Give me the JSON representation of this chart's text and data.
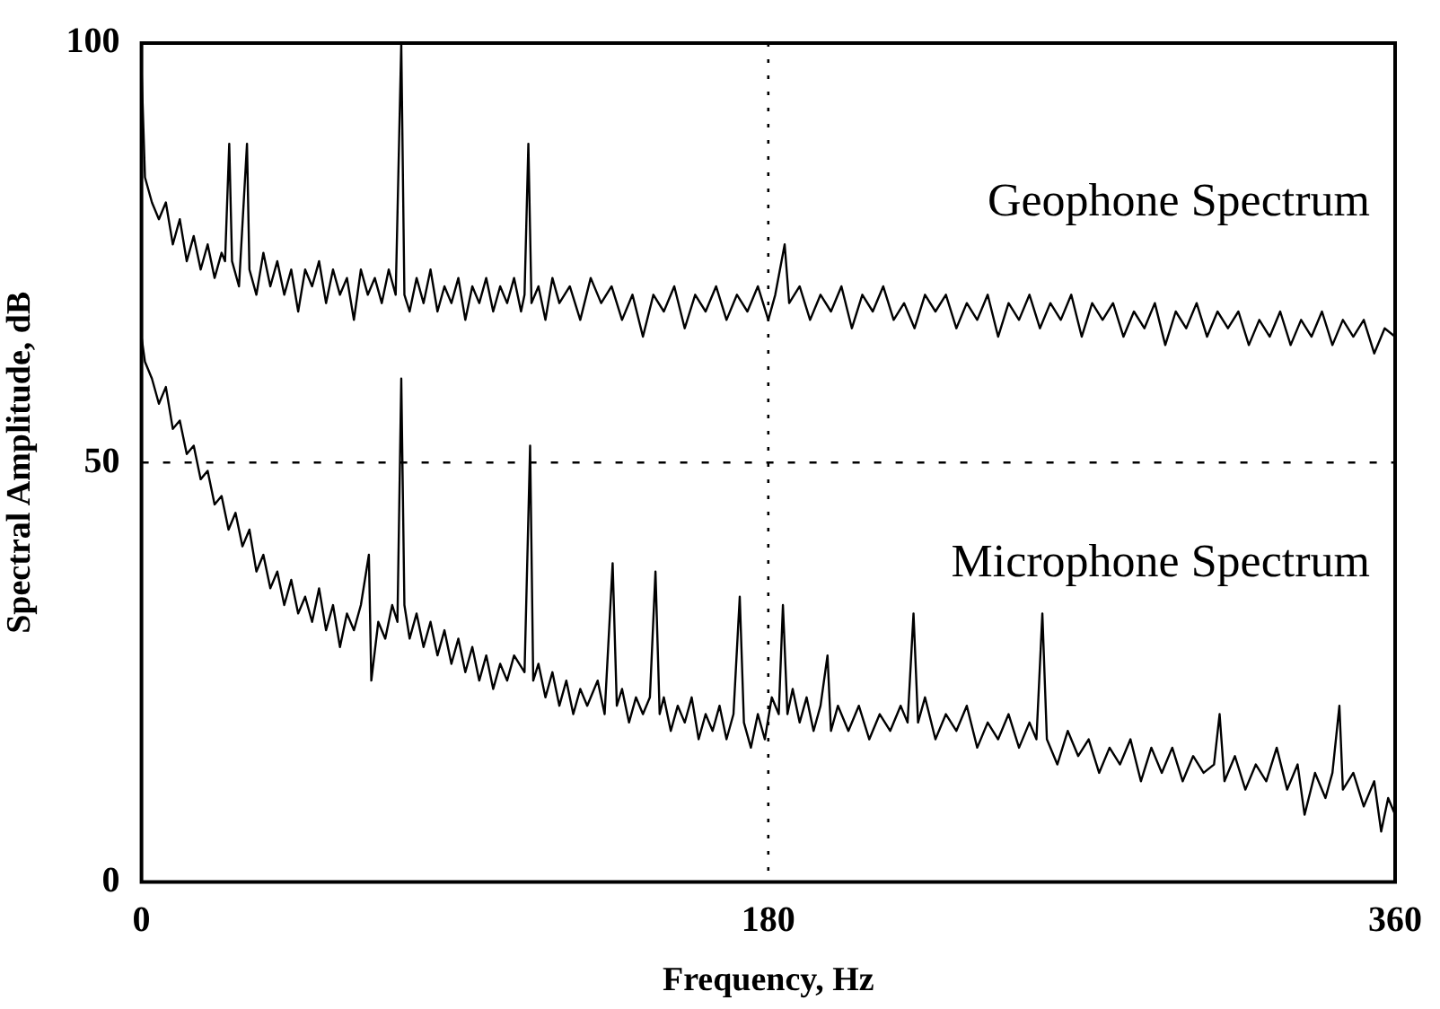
{
  "chart_data": {
    "type": "line",
    "xlabel": "Frequency, Hz",
    "ylabel": "Spectral Amplitude, dB",
    "xlim": [
      0,
      360
    ],
    "xticks": [
      0,
      180,
      360
    ],
    "ylim": [
      0,
      100
    ],
    "yticks": [
      0,
      50,
      100
    ],
    "grid": true,
    "legend": false,
    "marker": "none",
    "line_style": "solid",
    "series": [
      {
        "name": "Geophone Spectrum",
        "color": "#000000",
        "x": [
          0,
          1,
          3,
          5,
          7,
          9,
          11,
          13,
          15,
          17,
          19,
          21,
          23,
          24,
          25.2,
          26,
          28,
          30.3,
          31,
          33,
          35,
          37,
          39,
          41,
          43,
          45,
          47,
          49,
          51,
          53,
          55,
          57,
          59,
          61,
          63,
          65,
          67,
          69,
          71,
          73,
          74.6,
          75.5,
          77,
          79,
          81,
          83,
          85,
          87,
          89,
          91,
          93,
          95,
          97,
          99,
          101,
          103,
          105,
          107,
          109,
          110,
          111.1,
          112,
          114,
          116,
          118,
          120,
          123,
          126,
          129,
          132,
          135,
          138,
          141,
          144,
          147,
          150,
          153,
          156,
          159,
          162,
          165,
          168,
          171,
          174,
          177,
          180,
          182,
          184.7,
          186,
          189,
          192,
          195,
          198,
          201,
          204,
          207,
          210,
          213,
          216,
          219,
          222,
          225,
          228,
          231,
          234,
          237,
          240,
          243,
          246,
          249,
          252,
          255,
          258,
          261,
          264,
          267,
          270,
          273,
          276,
          279,
          282,
          285,
          288,
          291,
          294,
          297,
          300,
          303,
          306,
          309,
          312,
          315,
          318,
          321,
          324,
          327,
          330,
          333,
          336,
          339,
          342,
          345,
          348,
          351,
          354,
          357,
          360
        ],
        "values": [
          97,
          84,
          81,
          79,
          81,
          76,
          79,
          74,
          77,
          73,
          76,
          72,
          75,
          74,
          88,
          74,
          71,
          88,
          73,
          70,
          75,
          71,
          74,
          70,
          73,
          68,
          73,
          71,
          74,
          69,
          73,
          70,
          72,
          67,
          73,
          70,
          72,
          69,
          73,
          70,
          100,
          70,
          68,
          72,
          69,
          73,
          68,
          71,
          69,
          72,
          67,
          71,
          69,
          72,
          68,
          71,
          69,
          72,
          68,
          70,
          88,
          69,
          71,
          67,
          72,
          69,
          71,
          67,
          72,
          69,
          71,
          67,
          70,
          65,
          70,
          68,
          71,
          66,
          70,
          68,
          71,
          67,
          70,
          68,
          71,
          67,
          70,
          76,
          69,
          71,
          67,
          70,
          68,
          71,
          66,
          70,
          68,
          71,
          67,
          69,
          66,
          70,
          68,
          70,
          66,
          69,
          67,
          70,
          65,
          69,
          67,
          70,
          66,
          69,
          67,
          70,
          65,
          69,
          67,
          69,
          65,
          68,
          66,
          69,
          64,
          68,
          66,
          69,
          65,
          68,
          66,
          68,
          64,
          67,
          65,
          68,
          64,
          67,
          65,
          68,
          64,
          67,
          65,
          67,
          63,
          66,
          65
        ]
      },
      {
        "name": "Microphone Spectrum",
        "color": "#000000",
        "x": [
          0,
          1,
          3,
          5,
          7,
          9,
          11,
          13,
          15,
          17,
          19,
          21,
          23,
          25,
          27,
          29,
          31,
          33,
          35,
          37,
          39,
          41,
          43,
          45,
          47,
          49,
          51,
          53,
          55,
          57,
          59,
          61,
          63,
          65.3,
          66,
          68,
          70,
          72,
          73.5,
          74.6,
          75.5,
          77,
          79,
          81,
          83,
          85,
          87,
          89,
          91,
          93,
          95,
          97,
          99,
          101,
          103,
          105,
          107,
          110,
          111.6,
          112.5,
          114,
          116,
          118,
          120,
          122,
          124,
          126,
          128,
          131,
          133,
          135.3,
          136.5,
          138,
          140,
          142,
          144,
          146,
          147.6,
          148.8,
          150,
          152,
          154,
          156,
          158,
          160,
          162,
          164,
          166,
          168,
          170,
          171.8,
          173,
          175,
          177,
          179,
          181,
          183,
          184.2,
          185.5,
          187,
          189,
          191,
          193,
          195,
          197,
          198,
          200,
          203,
          206,
          209,
          212,
          215,
          218,
          220,
          221.7,
          223,
          225,
          228,
          231,
          234,
          237,
          240,
          243,
          246,
          249,
          252,
          255,
          257,
          258.7,
          260,
          263,
          266,
          269,
          272,
          275,
          278,
          281,
          284,
          287,
          290,
          293,
          296,
          299,
          302,
          305,
          308,
          309.6,
          311,
          314,
          317,
          320,
          323,
          326,
          329,
          332,
          334,
          337,
          340,
          342,
          344,
          345,
          348,
          351,
          354,
          356,
          358,
          360
        ],
        "values": [
          65,
          62,
          60,
          57,
          59,
          54,
          55,
          51,
          52,
          48,
          49,
          45,
          46,
          42,
          44,
          40,
          42,
          37,
          39,
          35,
          37,
          33,
          36,
          32,
          34,
          31,
          35,
          30,
          33,
          28,
          32,
          30,
          33,
          39,
          24,
          31,
          29,
          33,
          31,
          60,
          33,
          29,
          32,
          28,
          31,
          27,
          30,
          26,
          29,
          25,
          28,
          24,
          27,
          23,
          26,
          24,
          27,
          25,
          52,
          24,
          26,
          22,
          25,
          21,
          24,
          20,
          23,
          21,
          24,
          20,
          38,
          21,
          23,
          19,
          22,
          20,
          22,
          37,
          20,
          22,
          18,
          21,
          19,
          22,
          17,
          20,
          18,
          21,
          17,
          20,
          34,
          19,
          16,
          20,
          17,
          22,
          20,
          33,
          20,
          23,
          19,
          22,
          18,
          21,
          27,
          18,
          21,
          18,
          21,
          17,
          20,
          18,
          21,
          19,
          32,
          19,
          22,
          17,
          20,
          18,
          21,
          16,
          19,
          17,
          20,
          16,
          19,
          17,
          32,
          17,
          14,
          18,
          15,
          17,
          13,
          16,
          14,
          17,
          12,
          16,
          13,
          16,
          12,
          15,
          13,
          14,
          20,
          12,
          15,
          11,
          14,
          12,
          16,
          11,
          14,
          8,
          13,
          10,
          13,
          21,
          11,
          13,
          9,
          12,
          6,
          10,
          8
        ]
      }
    ]
  }
}
